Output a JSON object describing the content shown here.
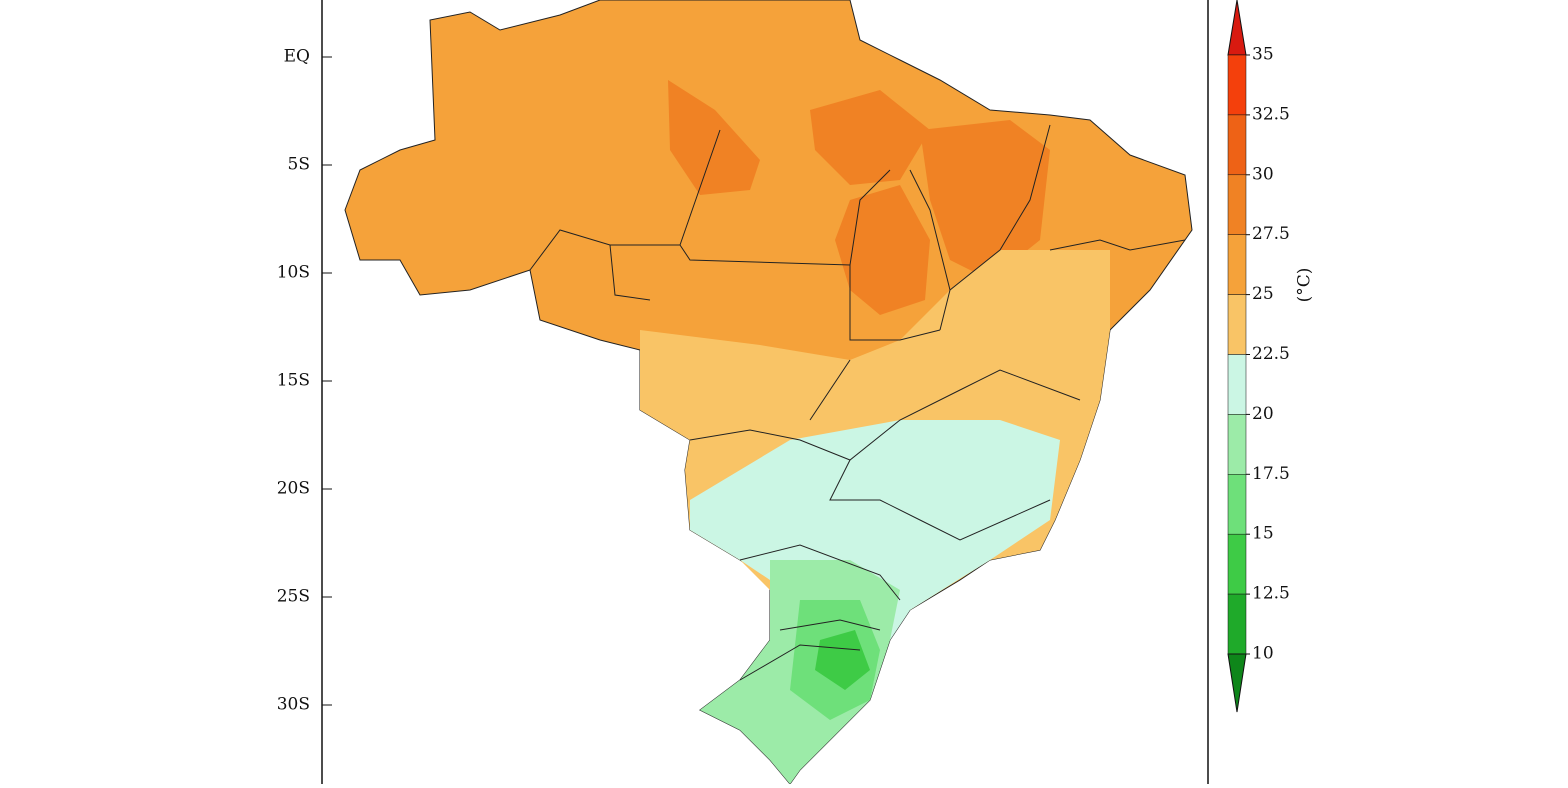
{
  "map": {
    "lat_labels": [
      "EQ",
      "5S",
      "10S",
      "15S",
      "20S",
      "25S",
      "30S"
    ],
    "colorbar": {
      "ticks": [
        35,
        32.5,
        30,
        27.5,
        25,
        22.5,
        20,
        17.5,
        15,
        12.5,
        10
      ],
      "colors": [
        "#d81a10",
        "#f4400c",
        "#ee6216",
        "#f08224",
        "#f5a23a",
        "#f9c466",
        "#cbf6e4",
        "#9ceba8",
        "#6ee07a",
        "#3ecb46",
        "#1faa2a",
        "#0e861a"
      ],
      "unit": "(°C)"
    }
  }
}
